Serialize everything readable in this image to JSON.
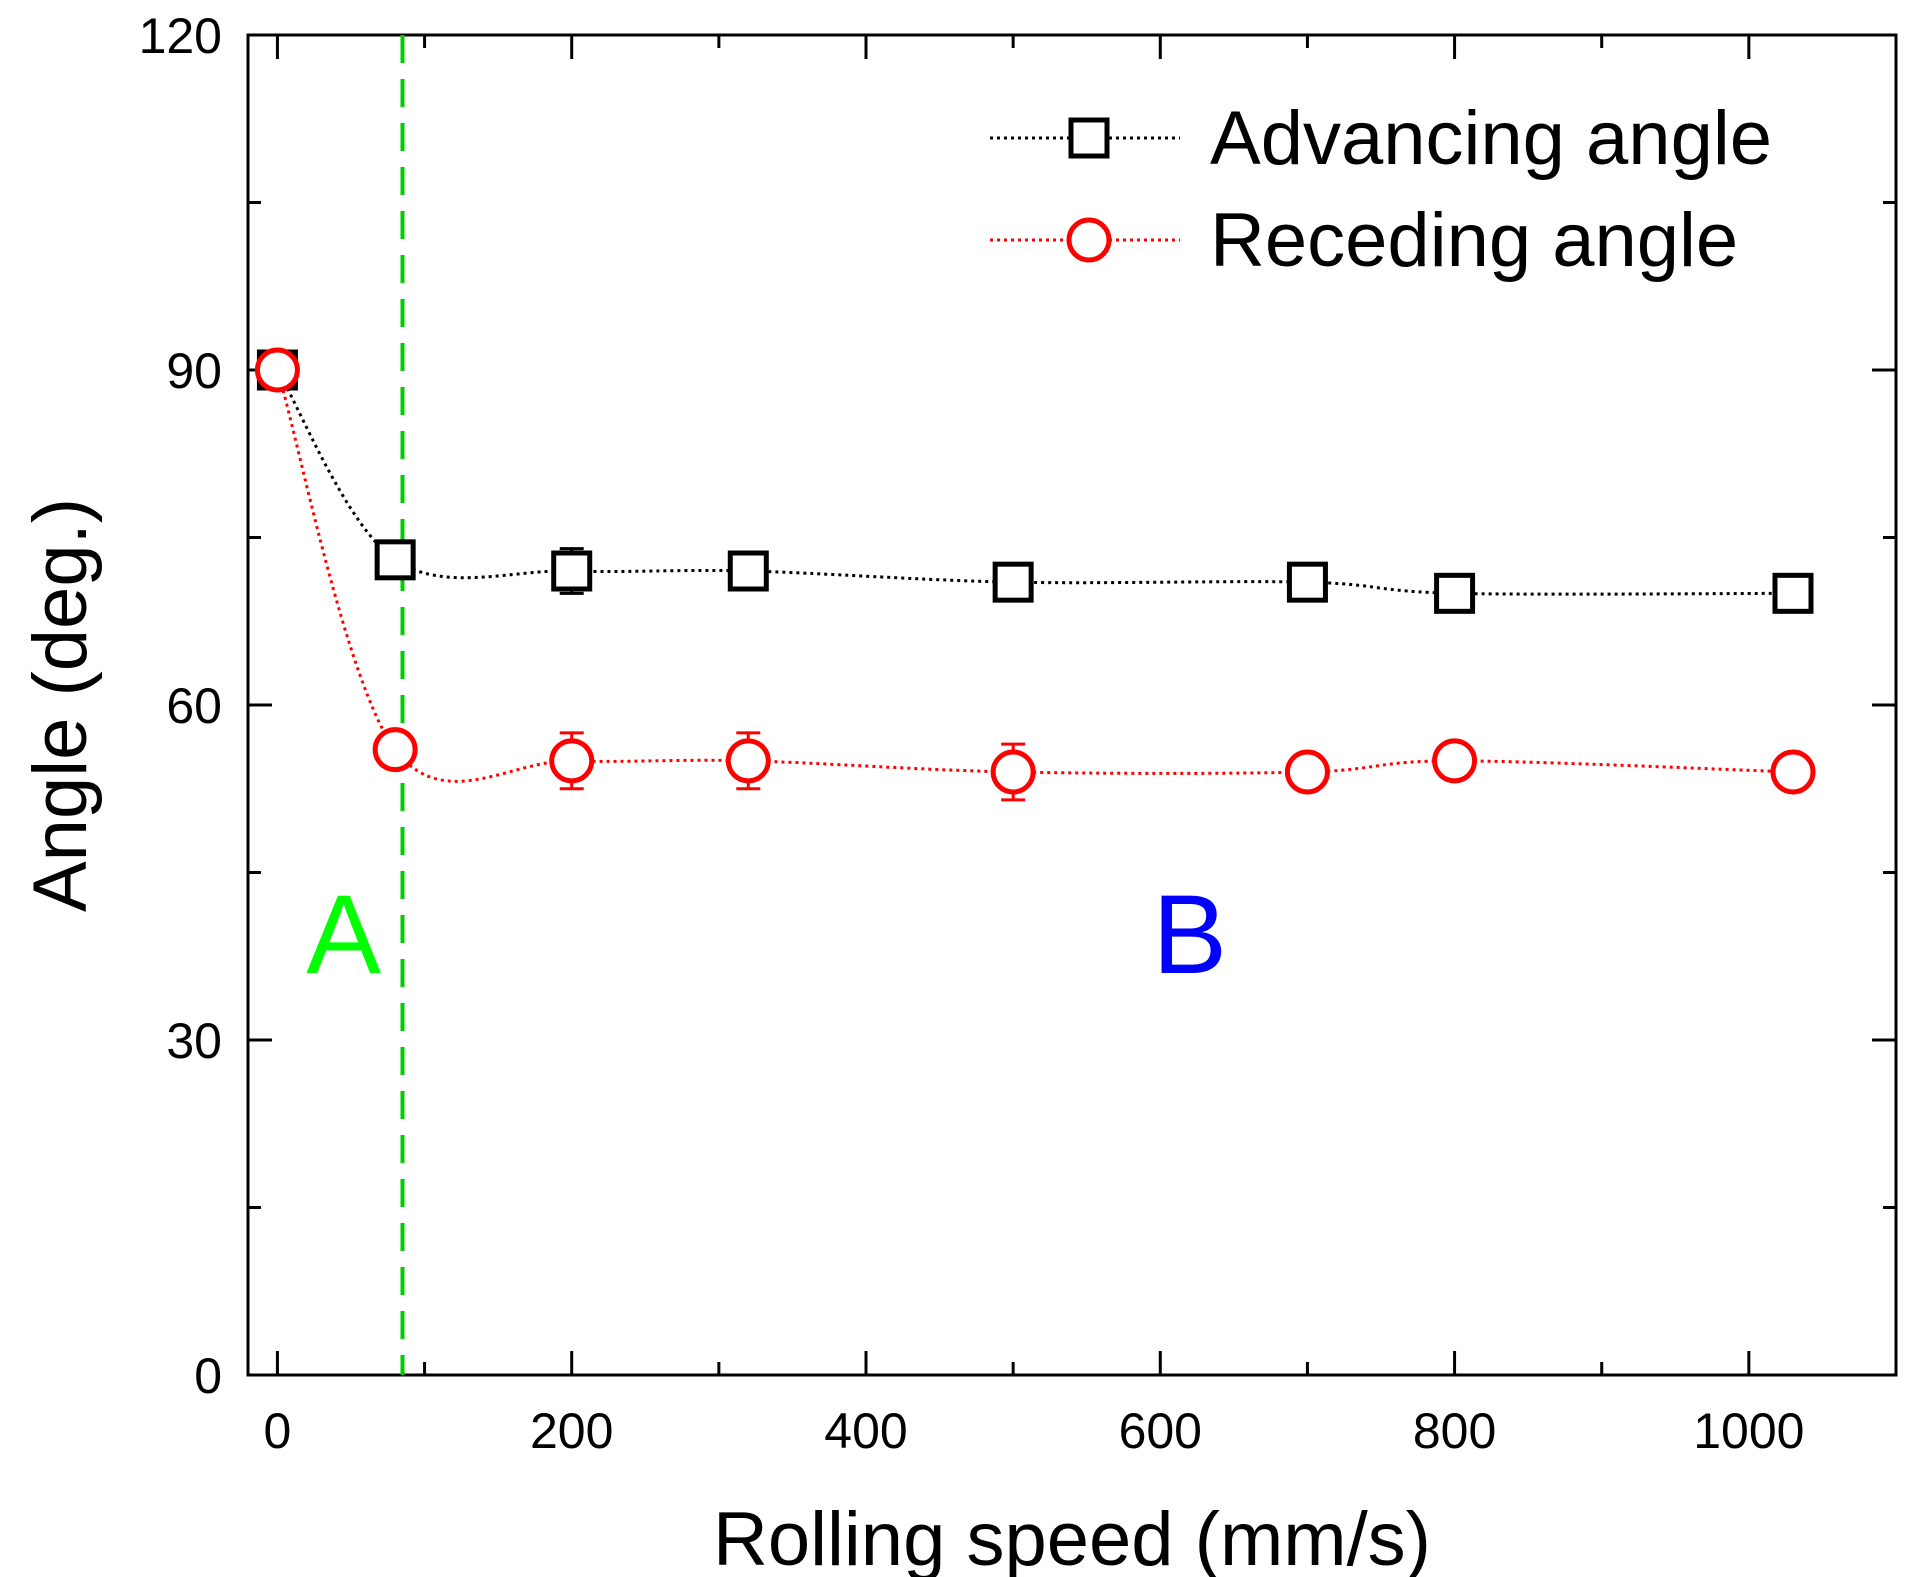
{
  "chart_data": {
    "type": "line",
    "title": "",
    "xlabel": "Rolling speed (mm/s)",
    "ylabel": "Angle (deg.)",
    "xlim": [
      -20,
      1100
    ],
    "ylim": [
      0,
      120
    ],
    "x_ticks": [
      0,
      200,
      400,
      600,
      800,
      1000
    ],
    "x_minor_ticks": [
      100,
      300,
      500,
      700,
      900
    ],
    "y_ticks": [
      0,
      30,
      60,
      90,
      120
    ],
    "y_minor_ticks": [
      15,
      45,
      75,
      105
    ],
    "grid": false,
    "legend_position": "top-right",
    "series": [
      {
        "name": "Advancing angle",
        "marker": "square",
        "color": "#000000",
        "x": [
          0,
          80,
          200,
          320,
          500,
          700,
          800,
          1030
        ],
        "y": [
          90,
          73,
          72,
          72,
          71,
          71,
          70,
          70
        ],
        "y_err": [
          0,
          1.0,
          2.0,
          1.0,
          1.0,
          1.0,
          1.0,
          1.0
        ]
      },
      {
        "name": "Receding angle",
        "marker": "circle",
        "color": "#ff0000",
        "x": [
          0,
          80,
          200,
          320,
          500,
          700,
          800,
          1030
        ],
        "y": [
          90,
          56,
          55,
          55,
          54,
          54,
          55,
          54
        ],
        "y_err": [
          0,
          1.5,
          2.5,
          2.5,
          2.5,
          1.5,
          1.5,
          1.5
        ]
      }
    ],
    "annotations": [
      {
        "id": "region-a",
        "text": "A",
        "x": 45,
        "y": 36,
        "color": "#00ff00"
      },
      {
        "id": "region-b",
        "text": "B",
        "x": 620,
        "y": 36,
        "color": "#0000ff"
      }
    ],
    "reference_line": {
      "x": 85,
      "color": "#00cc00",
      "style": "dashed"
    }
  }
}
